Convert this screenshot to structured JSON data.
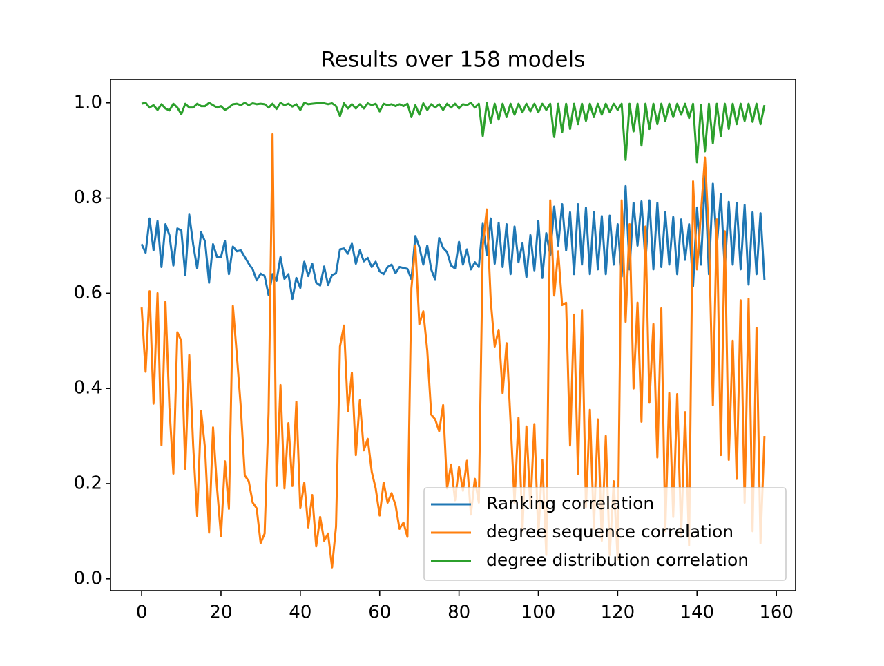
{
  "chart_data": {
    "type": "line",
    "title": "Results over 158 models",
    "x": [
      0,
      1,
      2,
      3,
      4,
      5,
      6,
      7,
      8,
      9,
      10,
      11,
      12,
      13,
      14,
      15,
      16,
      17,
      18,
      19,
      20,
      21,
      22,
      23,
      24,
      25,
      26,
      27,
      28,
      29,
      30,
      31,
      32,
      33,
      34,
      35,
      36,
      37,
      38,
      39,
      40,
      41,
      42,
      43,
      44,
      45,
      46,
      47,
      48,
      49,
      50,
      51,
      52,
      53,
      54,
      55,
      56,
      57,
      58,
      59,
      60,
      61,
      62,
      63,
      64,
      65,
      66,
      67,
      68,
      69,
      70,
      71,
      72,
      73,
      74,
      75,
      76,
      77,
      78,
      79,
      80,
      81,
      82,
      83,
      84,
      85,
      86,
      87,
      88,
      89,
      90,
      91,
      92,
      93,
      94,
      95,
      96,
      97,
      98,
      99,
      100,
      101,
      102,
      103,
      104,
      105,
      106,
      107,
      108,
      109,
      110,
      111,
      112,
      113,
      114,
      115,
      116,
      117,
      118,
      119,
      120,
      121,
      122,
      123,
      124,
      125,
      126,
      127,
      128,
      129,
      130,
      131,
      132,
      133,
      134,
      135,
      136,
      137,
      138,
      139,
      140,
      141,
      142,
      143,
      144,
      145,
      146,
      147,
      148,
      149,
      150,
      151,
      152,
      153,
      154,
      155,
      156,
      157
    ],
    "series": [
      {
        "name": "Ranking correlation",
        "color": "#1f77b4",
        "values": [
          0.703,
          0.685,
          0.757,
          0.69,
          0.752,
          0.655,
          0.745,
          0.722,
          0.658,
          0.736,
          0.732,
          0.638,
          0.765,
          0.702,
          0.652,
          0.728,
          0.708,
          0.622,
          0.703,
          0.676,
          0.676,
          0.71,
          0.64,
          0.698,
          0.688,
          0.69,
          0.676,
          0.662,
          0.65,
          0.627,
          0.641,
          0.636,
          0.596,
          0.64,
          0.626,
          0.676,
          0.63,
          0.64,
          0.588,
          0.632,
          0.611,
          0.666,
          0.636,
          0.662,
          0.622,
          0.616,
          0.656,
          0.617,
          0.638,
          0.642,
          0.692,
          0.694,
          0.683,
          0.704,
          0.662,
          0.69,
          0.667,
          0.674,
          0.655,
          0.666,
          0.646,
          0.64,
          0.655,
          0.66,
          0.642,
          0.655,
          0.653,
          0.651,
          0.629,
          0.72,
          0.697,
          0.66,
          0.7,
          0.65,
          0.628,
          0.716,
          0.695,
          0.686,
          0.658,
          0.652,
          0.708,
          0.66,
          0.692,
          0.65,
          0.665,
          0.655,
          0.746,
          0.68,
          0.757,
          0.662,
          0.748,
          0.655,
          0.745,
          0.64,
          0.74,
          0.665,
          0.705,
          0.634,
          0.722,
          0.648,
          0.752,
          0.632,
          0.726,
          0.68,
          0.782,
          0.7,
          0.787,
          0.69,
          0.77,
          0.64,
          0.787,
          0.66,
          0.78,
          0.64,
          0.77,
          0.65,
          0.762,
          0.64,
          0.763,
          0.66,
          0.745,
          0.635,
          0.825,
          0.65,
          0.79,
          0.7,
          0.793,
          0.665,
          0.795,
          0.65,
          0.79,
          0.655,
          0.77,
          0.66,
          0.76,
          0.64,
          0.755,
          0.67,
          0.745,
          0.615,
          0.78,
          0.66,
          0.845,
          0.64,
          0.83,
          0.7,
          0.808,
          0.65,
          0.792,
          0.66,
          0.79,
          0.65,
          0.785,
          0.618,
          0.77,
          0.64,
          0.768,
          0.628
        ]
      },
      {
        "name": "degree sequence correlation",
        "color": "#ff7f0e",
        "values": [
          0.57,
          0.435,
          0.604,
          0.368,
          0.6,
          0.281,
          0.582,
          0.36,
          0.221,
          0.518,
          0.5,
          0.231,
          0.47,
          0.278,
          0.132,
          0.352,
          0.272,
          0.097,
          0.318,
          0.192,
          0.09,
          0.247,
          0.147,
          0.573,
          0.47,
          0.36,
          0.217,
          0.205,
          0.16,
          0.148,
          0.075,
          0.095,
          0.35,
          0.934,
          0.195,
          0.407,
          0.19,
          0.327,
          0.195,
          0.372,
          0.148,
          0.202,
          0.108,
          0.176,
          0.068,
          0.13,
          0.08,
          0.095,
          0.024,
          0.11,
          0.488,
          0.532,
          0.352,
          0.433,
          0.26,
          0.375,
          0.27,
          0.294,
          0.225,
          0.19,
          0.133,
          0.202,
          0.16,
          0.18,
          0.155,
          0.105,
          0.118,
          0.088,
          0.61,
          0.7,
          0.535,
          0.562,
          0.48,
          0.345,
          0.335,
          0.31,
          0.365,
          0.19,
          0.24,
          0.165,
          0.235,
          0.185,
          0.248,
          0.135,
          0.21,
          0.16,
          0.7,
          0.776,
          0.585,
          0.488,
          0.523,
          0.39,
          0.495,
          0.33,
          0.16,
          0.338,
          0.1,
          0.32,
          0.15,
          0.325,
          0.09,
          0.25,
          0.05,
          0.795,
          0.595,
          0.688,
          0.575,
          0.58,
          0.28,
          0.555,
          0.22,
          0.565,
          0.15,
          0.355,
          0.105,
          0.335,
          0.08,
          0.3,
          0.05,
          0.205,
          0.04,
          0.795,
          0.54,
          0.745,
          0.4,
          0.58,
          0.33,
          0.74,
          0.37,
          0.535,
          0.255,
          0.568,
          0.1,
          0.39,
          0.13,
          0.388,
          0.09,
          0.35,
          0.07,
          0.835,
          0.65,
          0.77,
          0.885,
          0.72,
          0.365,
          0.755,
          0.26,
          0.73,
          0.25,
          0.5,
          0.21,
          0.585,
          0.16,
          0.588,
          0.1,
          0.527,
          0.075,
          0.3
        ]
      },
      {
        "name": "degree distribution correlation",
        "color": "#2ca02c",
        "values": [
          0.998,
          1.0,
          0.99,
          0.995,
          0.985,
          0.997,
          0.988,
          0.984,
          0.998,
          0.99,
          0.976,
          0.998,
          0.99,
          0.99,
          0.998,
          0.993,
          0.993,
          1.0,
          0.995,
          0.99,
          0.993,
          0.985,
          0.99,
          0.997,
          0.998,
          0.995,
          1.0,
          0.995,
          0.999,
          0.997,
          0.998,
          0.997,
          0.99,
          0.998,
          0.987,
          1.0,
          0.995,
          0.998,
          0.992,
          0.997,
          0.985,
          1.0,
          0.997,
          0.998,
          0.999,
          0.999,
          0.999,
          0.997,
          0.999,
          0.993,
          0.972,
          0.999,
          0.988,
          0.997,
          0.988,
          0.997,
          0.988,
          0.999,
          0.995,
          0.998,
          0.982,
          0.998,
          0.995,
          0.997,
          0.993,
          0.997,
          0.993,
          0.998,
          0.97,
          0.995,
          0.975,
          0.999,
          0.985,
          0.997,
          0.99,
          0.997,
          0.985,
          0.998,
          0.99,
          0.998,
          0.988,
          0.997,
          0.995,
          1.0,
          0.99,
          0.998,
          0.93,
          1.0,
          0.958,
          0.998,
          0.965,
          0.998,
          0.97,
          0.998,
          0.975,
          0.998,
          0.98,
          0.998,
          0.982,
          0.998,
          0.98,
          0.998,
          0.985,
          0.998,
          0.928,
          0.998,
          0.938,
          0.998,
          0.945,
          0.998,
          0.955,
          0.998,
          0.962,
          0.998,
          0.97,
          0.998,
          0.975,
          0.998,
          0.98,
          0.998,
          0.985,
          0.998,
          0.88,
          0.998,
          0.94,
          0.998,
          0.91,
          0.998,
          0.945,
          0.998,
          0.955,
          0.998,
          0.962,
          0.998,
          0.97,
          0.998,
          0.975,
          0.998,
          0.968,
          0.998,
          0.875,
          0.995,
          0.898,
          0.998,
          0.915,
          0.998,
          0.93,
          0.998,
          0.945,
          0.998,
          0.955,
          0.998,
          0.962,
          0.998,
          0.96,
          0.998,
          0.955,
          0.995
        ]
      }
    ],
    "xlim": [
      -7.85,
      164.85
    ],
    "xticks": [
      0,
      20,
      40,
      60,
      80,
      100,
      120,
      140,
      160
    ],
    "ylim": [
      -0.025,
      1.049
    ],
    "yticks": [
      {
        "value": 0,
        "label": "0.0"
      },
      0.2,
      0.4,
      0.6,
      0.8,
      {
        "value": 1,
        "label": "1.0"
      }
    ],
    "legend": "lower right"
  }
}
